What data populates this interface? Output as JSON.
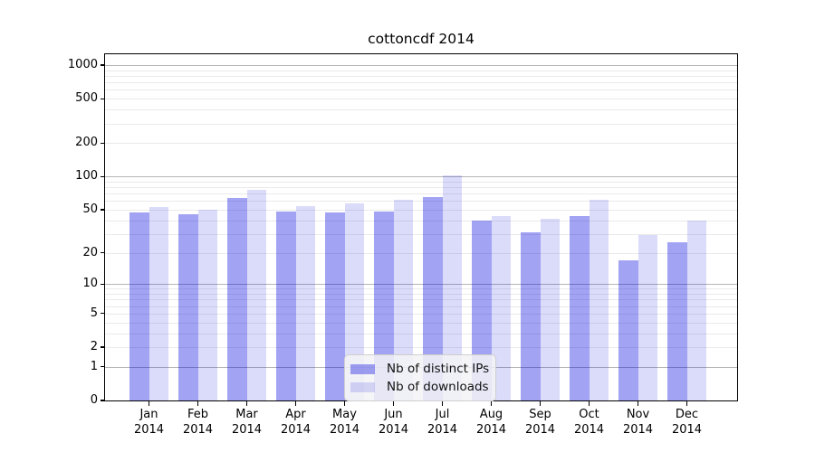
{
  "chart_data": {
    "type": "bar",
    "title": "cottoncdf 2014",
    "categories": [
      "Jan 2014",
      "Feb 2014",
      "Mar 2014",
      "Apr 2014",
      "May 2014",
      "Jun 2014",
      "Jul 2014",
      "Aug 2014",
      "Sep 2014",
      "Oct 2014",
      "Nov 2014",
      "Dec 2014"
    ],
    "series": [
      {
        "name": "Nb of distinct IPs",
        "color": "rgba(0,0,222,0.36)",
        "values": [
          47,
          45,
          64,
          48,
          47,
          48,
          65,
          40,
          31,
          44,
          17,
          25
        ]
      },
      {
        "name": "Nb of downloads",
        "color": "rgba(0,0,222,0.14)",
        "values": [
          53,
          50,
          76,
          54,
          57,
          61,
          103,
          44,
          41,
          62,
          29,
          40
        ]
      }
    ],
    "xlabel": "",
    "ylabel": "",
    "yscale": "log1p",
    "y_ticks": [
      0,
      1,
      2,
      5,
      10,
      20,
      50,
      100,
      200,
      500,
      1000
    ],
    "ylim": [
      0,
      1200
    ],
    "grid": "on",
    "legend_position": "lower center",
    "colors": {
      "major_gridline": "#b5b5b5",
      "minor_gridline": "#eaeaea",
      "spine": "#000000"
    }
  }
}
